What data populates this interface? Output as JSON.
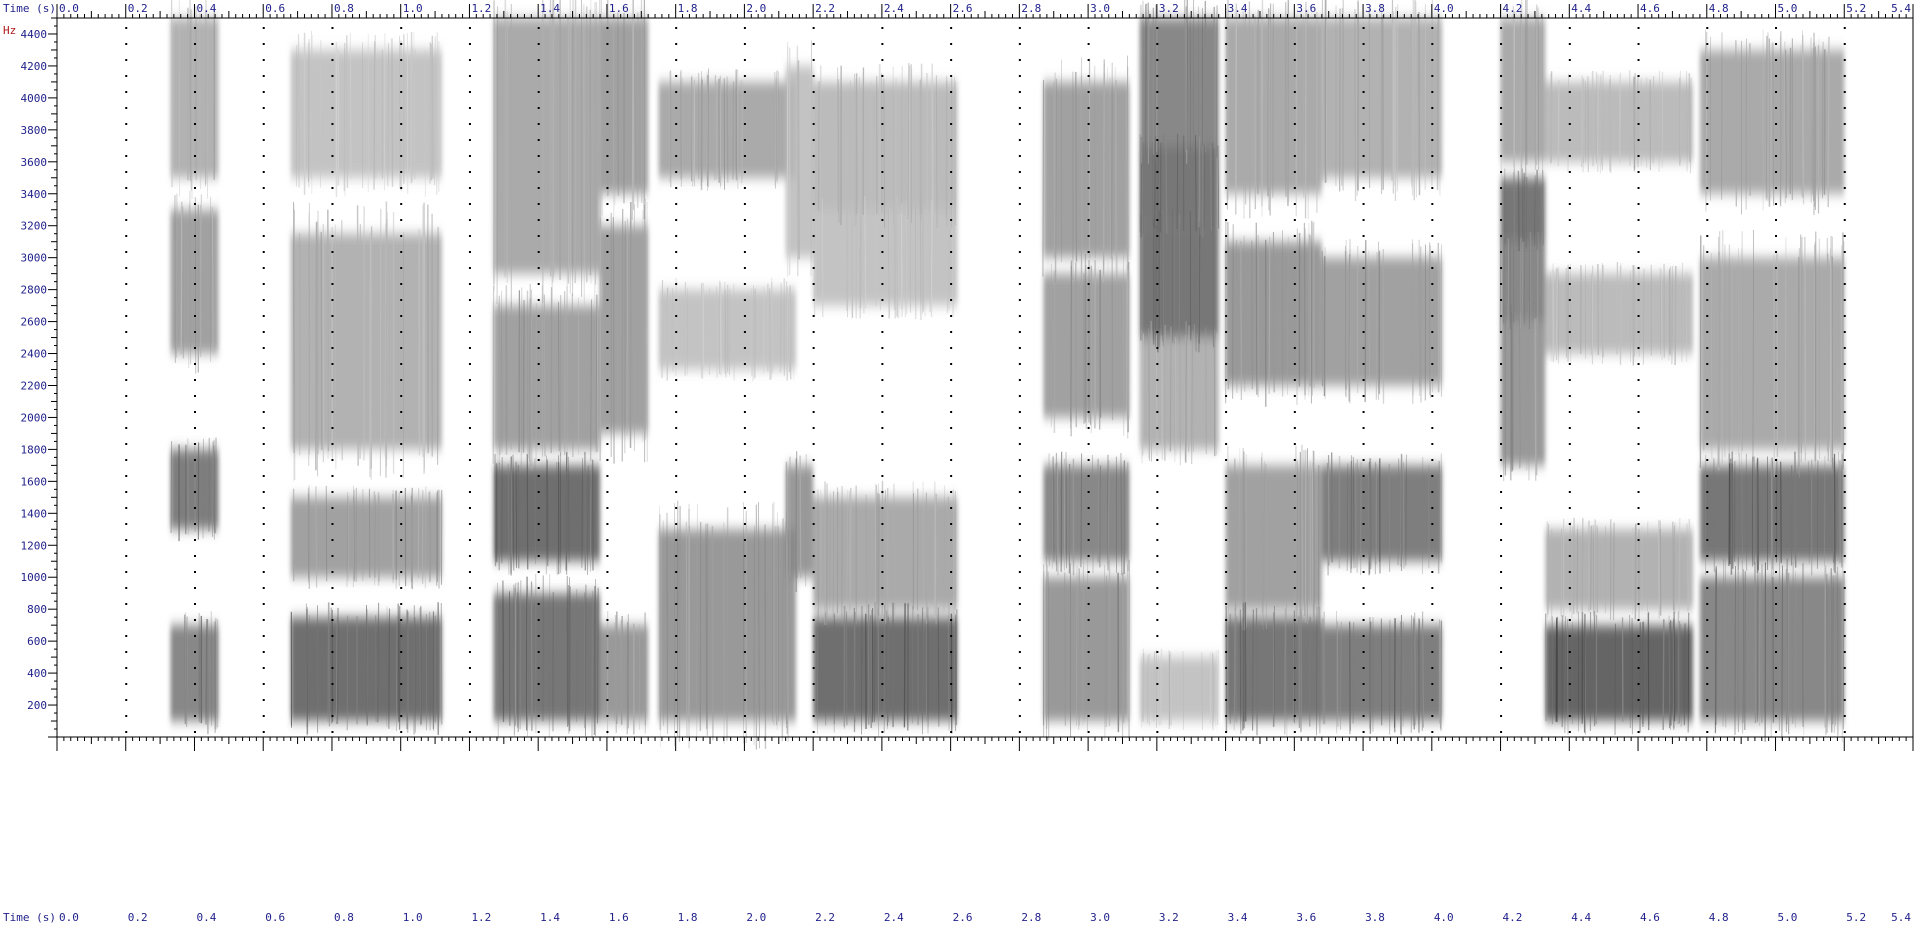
{
  "chart_data": {
    "type": "heatmap",
    "title": "",
    "xlabel": "Time (s)",
    "ylabel": "Hz",
    "xlim": [
      0.0,
      5.4
    ],
    "ylim": [
      0,
      4500
    ],
    "x_ticks": [
      0.0,
      0.2,
      0.4,
      0.6,
      0.8,
      1.0,
      1.2,
      1.4,
      1.6,
      1.8,
      2.0,
      2.2,
      2.4,
      2.6,
      2.8,
      3.0,
      3.2,
      3.4,
      3.6,
      3.8,
      4.0,
      4.2,
      4.4,
      4.6,
      4.8,
      5.0,
      5.2,
      5.4
    ],
    "x_tick_labels": [
      "0.0",
      "0.2",
      "0.4",
      "0.6",
      "0.8",
      "1.0",
      "1.2",
      "1.4",
      "1.6",
      "1.8",
      "2.0",
      "2.2",
      "2.4",
      "2.6",
      "2.8",
      "3.0",
      "3.2",
      "3.4",
      "3.6",
      "3.8",
      "4.0",
      "4.2",
      "4.4",
      "4.6",
      "4.8",
      "5.0",
      "5.2",
      "5.4"
    ],
    "y_ticks": [
      200,
      400,
      600,
      800,
      1000,
      1200,
      1400,
      1600,
      1800,
      2000,
      2200,
      2400,
      2600,
      2800,
      3000,
      3200,
      3400,
      3600,
      3800,
      4000,
      4200,
      4400
    ],
    "y_tick_labels": [
      "200",
      "400",
      "600",
      "800",
      "1000",
      "1200",
      "1400",
      "1600",
      "1800",
      "2000",
      "2200",
      "2400",
      "2600",
      "2800",
      "3000",
      "3200",
      "3400",
      "3600",
      "3800",
      "4000",
      "4200",
      "4400"
    ],
    "grid": true,
    "colormap": "grayscale",
    "segments": [
      {
        "t0": 0.33,
        "t1": 0.47,
        "bands": [
          [
            100,
            700,
            0.7
          ],
          [
            1300,
            1800,
            0.75
          ],
          [
            2400,
            3300,
            0.55
          ],
          [
            3500,
            4500,
            0.45
          ]
        ]
      },
      {
        "t0": 0.68,
        "t1": 1.12,
        "bands": [
          [
            100,
            750,
            0.85
          ],
          [
            1000,
            1500,
            0.55
          ],
          [
            1800,
            3150,
            0.45
          ],
          [
            3500,
            4300,
            0.35
          ]
        ]
      },
      {
        "t0": 1.27,
        "t1": 1.58,
        "bands": [
          [
            100,
            900,
            0.8
          ],
          [
            1100,
            1700,
            0.85
          ],
          [
            1800,
            2700,
            0.55
          ],
          [
            2900,
            4500,
            0.5
          ]
        ]
      },
      {
        "t0": 1.58,
        "t1": 1.72,
        "bands": [
          [
            100,
            700,
            0.6
          ],
          [
            1900,
            3200,
            0.55
          ],
          [
            3400,
            4500,
            0.55
          ]
        ]
      },
      {
        "t0": 1.75,
        "t1": 2.15,
        "bands": [
          [
            100,
            1300,
            0.6
          ],
          [
            2300,
            2800,
            0.35
          ],
          [
            3500,
            4100,
            0.5
          ]
        ]
      },
      {
        "t0": 2.12,
        "t1": 2.2,
        "bands": [
          [
            1000,
            1700,
            0.6
          ],
          [
            3000,
            4200,
            0.35
          ]
        ]
      },
      {
        "t0": 2.2,
        "t1": 2.62,
        "bands": [
          [
            100,
            750,
            0.85
          ],
          [
            800,
            1500,
            0.5
          ],
          [
            2700,
            3300,
            0.35
          ],
          [
            3300,
            4100,
            0.4
          ]
        ]
      },
      {
        "t0": 2.87,
        "t1": 3.12,
        "bands": [
          [
            100,
            1000,
            0.6
          ],
          [
            1100,
            1700,
            0.7
          ],
          [
            2000,
            2900,
            0.55
          ],
          [
            3000,
            4100,
            0.55
          ]
        ]
      },
      {
        "t0": 3.15,
        "t1": 3.38,
        "bands": [
          [
            100,
            500,
            0.35
          ],
          [
            1800,
            2500,
            0.45
          ],
          [
            2500,
            3200,
            0.8
          ],
          [
            3200,
            3700,
            0.8
          ],
          [
            3700,
            4500,
            0.7
          ]
        ]
      },
      {
        "t0": 3.4,
        "t1": 3.68,
        "bands": [
          [
            100,
            750,
            0.8
          ],
          [
            800,
            1700,
            0.55
          ],
          [
            2200,
            3100,
            0.6
          ],
          [
            3400,
            4500,
            0.5
          ]
        ]
      },
      {
        "t0": 3.68,
        "t1": 4.03,
        "bands": [
          [
            100,
            700,
            0.75
          ],
          [
            1100,
            1700,
            0.75
          ],
          [
            2200,
            3000,
            0.55
          ],
          [
            3500,
            4500,
            0.45
          ]
        ]
      },
      {
        "t0": 4.2,
        "t1": 4.33,
        "bands": [
          [
            1700,
            2600,
            0.6
          ],
          [
            2600,
            3100,
            0.7
          ],
          [
            3100,
            3500,
            0.8
          ],
          [
            3600,
            4500,
            0.5
          ]
        ]
      },
      {
        "t0": 4.33,
        "t1": 4.76,
        "bands": [
          [
            100,
            700,
            0.9
          ],
          [
            800,
            1300,
            0.45
          ],
          [
            2400,
            2900,
            0.4
          ],
          [
            3600,
            4100,
            0.4
          ]
        ]
      },
      {
        "t0": 4.78,
        "t1": 5.2,
        "bands": [
          [
            100,
            1000,
            0.7
          ],
          [
            1100,
            1700,
            0.8
          ],
          [
            1800,
            3000,
            0.5
          ],
          [
            3400,
            4300,
            0.5
          ]
        ]
      }
    ],
    "colors": {
      "axis_text": "#1f1f8a",
      "hz_label": "#b01818",
      "frame": "#000000",
      "grid_dot": "#000000"
    }
  }
}
